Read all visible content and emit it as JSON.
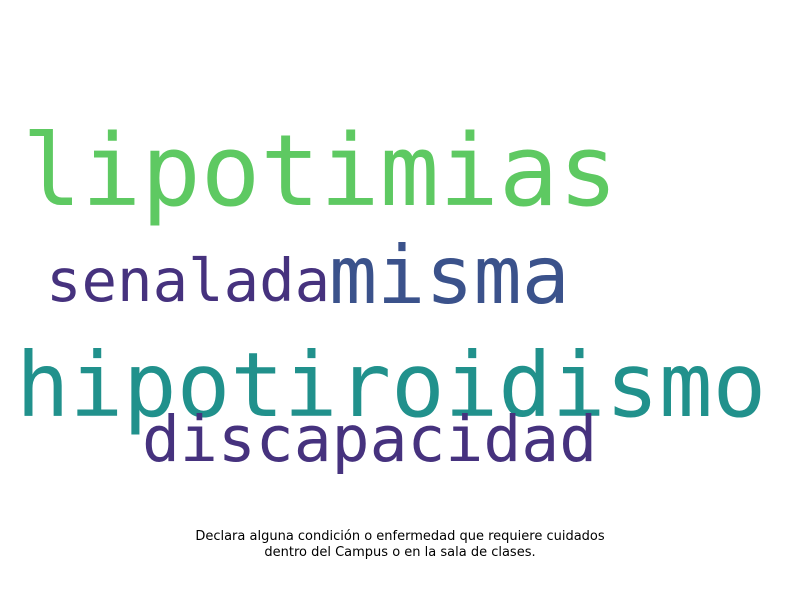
{
  "words": [
    {
      "key": "lipotimias",
      "text": "lipotimias",
      "color": "#5ec962"
    },
    {
      "key": "senalada",
      "text": "senalada",
      "color": "#46327e"
    },
    {
      "key": "misma",
      "text": "misma",
      "color": "#3b528b"
    },
    {
      "key": "hipotiroidismo",
      "text": "hipotiroidismo",
      "color": "#21918c"
    },
    {
      "key": "discapacidad",
      "text": "discapacidad",
      "color": "#46327e"
    }
  ],
  "caption": {
    "line1": "Declara alguna condición o enfermedad que requiere cuidados",
    "line2": "dentro del Campus o en la sala de clases."
  }
}
